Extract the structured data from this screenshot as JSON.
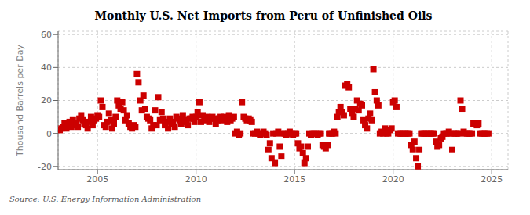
{
  "chart_data": {
    "type": "scatter",
    "title": "Monthly U.S. Net Imports from Peru of Unfinished Oils",
    "ylabel": "Thousand Barrels per Day",
    "source": "Source: U.S. Energy Information Administration",
    "color": "#cc0000",
    "marker": "square",
    "grid": true,
    "xlim": [
      2003.0,
      2025.83
    ],
    "ylim": [
      -22,
      62
    ],
    "xticks": [
      2005,
      2010,
      2015,
      2020,
      2025
    ],
    "yticks": [
      -20,
      0,
      20,
      40,
      60
    ],
    "x": [
      2003.08,
      2003.17,
      2003.25,
      2003.33,
      2003.42,
      2003.5,
      2003.58,
      2003.67,
      2003.75,
      2003.83,
      2003.92,
      2004.0,
      2004.08,
      2004.17,
      2004.25,
      2004.33,
      2004.42,
      2004.5,
      2004.58,
      2004.67,
      2004.75,
      2004.83,
      2004.92,
      2005.0,
      2005.08,
      2005.17,
      2005.25,
      2005.33,
      2005.42,
      2005.5,
      2005.58,
      2005.67,
      2005.75,
      2005.83,
      2005.92,
      2006.0,
      2006.08,
      2006.17,
      2006.25,
      2006.33,
      2006.42,
      2006.5,
      2006.58,
      2006.67,
      2006.75,
      2006.83,
      2006.92,
      2007.0,
      2007.08,
      2007.17,
      2007.25,
      2007.33,
      2007.42,
      2007.5,
      2007.58,
      2007.67,
      2007.75,
      2007.83,
      2007.92,
      2008.0,
      2008.08,
      2008.17,
      2008.25,
      2008.33,
      2008.42,
      2008.5,
      2008.58,
      2008.67,
      2008.75,
      2008.83,
      2008.92,
      2009.0,
      2009.08,
      2009.17,
      2009.25,
      2009.33,
      2009.42,
      2009.5,
      2009.58,
      2009.67,
      2009.75,
      2009.83,
      2009.92,
      2010.0,
      2010.08,
      2010.17,
      2010.25,
      2010.33,
      2010.42,
      2010.5,
      2010.58,
      2010.67,
      2010.75,
      2010.83,
      2010.92,
      2011.0,
      2011.08,
      2011.17,
      2011.25,
      2011.33,
      2011.42,
      2011.5,
      2011.58,
      2011.67,
      2011.75,
      2011.83,
      2011.92,
      2012.0,
      2012.08,
      2012.17,
      2012.25,
      2012.33,
      2012.42,
      2012.5,
      2012.58,
      2012.67,
      2012.75,
      2012.83,
      2012.92,
      2013.0,
      2013.08,
      2013.17,
      2013.25,
      2013.33,
      2013.42,
      2013.5,
      2013.58,
      2013.67,
      2013.75,
      2013.83,
      2013.92,
      2014.0,
      2014.08,
      2014.17,
      2014.25,
      2014.33,
      2014.42,
      2014.5,
      2014.58,
      2014.67,
      2014.75,
      2014.83,
      2014.92,
      2015.0,
      2015.08,
      2015.17,
      2015.25,
      2015.33,
      2015.42,
      2015.5,
      2015.58,
      2015.67,
      2015.75,
      2015.83,
      2015.92,
      2016.0,
      2016.08,
      2016.17,
      2016.25,
      2016.33,
      2016.42,
      2016.5,
      2016.58,
      2016.67,
      2016.75,
      2016.83,
      2016.92,
      2017.0,
      2017.08,
      2017.17,
      2017.25,
      2017.33,
      2017.42,
      2017.5,
      2017.58,
      2017.67,
      2017.75,
      2017.83,
      2017.92,
      2018.0,
      2018.08,
      2018.17,
      2018.25,
      2018.33,
      2018.42,
      2018.5,
      2018.58,
      2018.67,
      2018.75,
      2018.83,
      2018.92,
      2019.0,
      2019.08,
      2019.17,
      2019.25,
      2019.33,
      2019.42,
      2019.5,
      2019.58,
      2019.67,
      2019.75,
      2019.83,
      2019.92,
      2020.0,
      2020.08,
      2020.17,
      2020.25,
      2020.33,
      2020.42,
      2020.5,
      2020.58,
      2020.67,
      2020.75,
      2020.83,
      2020.92,
      2021.0,
      2021.08,
      2021.17,
      2021.25,
      2021.33,
      2021.42,
      2021.5,
      2021.58,
      2021.67,
      2021.75,
      2021.83,
      2021.92,
      2022.0,
      2022.08,
      2022.17,
      2022.25,
      2022.33,
      2022.42,
      2022.5,
      2022.58,
      2022.67,
      2022.75,
      2022.83,
      2022.92,
      2023.0,
      2023.08,
      2023.17,
      2023.25,
      2023.33,
      2023.42,
      2023.5,
      2023.58,
      2023.67,
      2023.75,
      2023.83,
      2023.92,
      2024.0,
      2024.08,
      2024.17,
      2024.25,
      2024.33,
      2024.42,
      2024.5,
      2024.58,
      2024.67,
      2024.75,
      2024.83
    ],
    "values": [
      2,
      3,
      4,
      6,
      3,
      5,
      7,
      4,
      8,
      5,
      6,
      4,
      9,
      11,
      8,
      6,
      5,
      3,
      7,
      10,
      5,
      8,
      9,
      11,
      10,
      20,
      16,
      5,
      4,
      7,
      12,
      8,
      3,
      6,
      10,
      20,
      17,
      15,
      19,
      14,
      8,
      11,
      6,
      4,
      3,
      5,
      4,
      36,
      31,
      20,
      14,
      23,
      15,
      10,
      9,
      8,
      3,
      5,
      14,
      5,
      22,
      8,
      13,
      9,
      5,
      7,
      3,
      9,
      6,
      7,
      4,
      10,
      9,
      8,
      6,
      11,
      8,
      7,
      5,
      9,
      9,
      10,
      7,
      10,
      13,
      19,
      7,
      11,
      8,
      9,
      10,
      7,
      9,
      10,
      9,
      6,
      8,
      9,
      10,
      8,
      10,
      9,
      7,
      11,
      8,
      9,
      10,
      0,
      1,
      -1,
      0,
      19,
      10,
      9,
      8,
      9,
      8,
      7,
      0,
      0,
      1,
      0,
      -1,
      0,
      1,
      0,
      -1,
      -10,
      -6,
      -15,
      0,
      -18,
      0,
      1,
      -8,
      -14,
      0,
      0,
      -1,
      0,
      1,
      0,
      -1,
      0,
      0,
      -6,
      -9,
      -8,
      -12,
      -18,
      -15,
      -8,
      0,
      -1,
      0,
      0,
      0,
      -1,
      0,
      0,
      -7,
      -8,
      -9,
      -7,
      0,
      0,
      0,
      1,
      0,
      10,
      13,
      16,
      13,
      11,
      29,
      30,
      28,
      15,
      12,
      10,
      15,
      20,
      14,
      18,
      17,
      8,
      5,
      3,
      9,
      12,
      8,
      39,
      25,
      20,
      17,
      0,
      1,
      0,
      3,
      0,
      0,
      2,
      3,
      19,
      20,
      16,
      0,
      0,
      0,
      0,
      0,
      0,
      0,
      0,
      -7,
      -10,
      -5,
      -15,
      -20,
      -10,
      0,
      0,
      0,
      0,
      0,
      0,
      0,
      0,
      0,
      -5,
      -8,
      -7,
      -3,
      -2,
      0,
      0,
      0,
      1,
      0,
      -10,
      0,
      0,
      0,
      0,
      20,
      15,
      1,
      0,
      0,
      0,
      0,
      0,
      6,
      6,
      5,
      6,
      0,
      0,
      0,
      0,
      0,
      0
    ]
  }
}
